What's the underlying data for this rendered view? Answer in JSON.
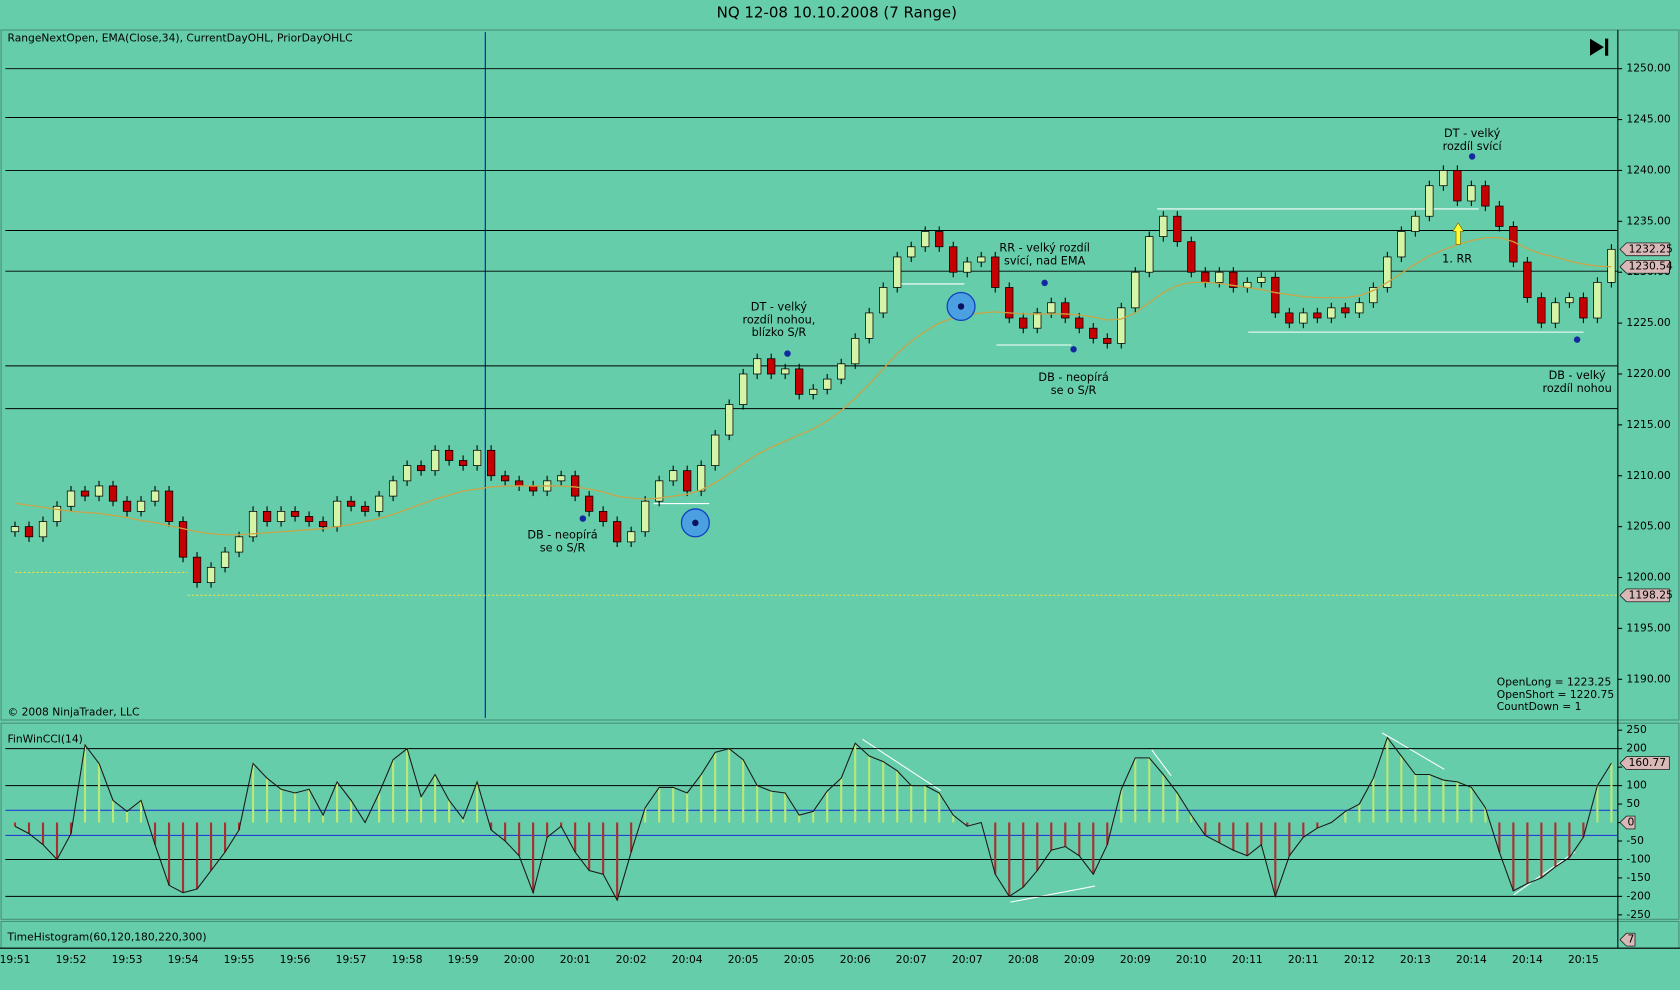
{
  "chart_data": {
    "type": "candlestick",
    "title": "NQ 12-08  10.10.2008 (7 Range)",
    "indicators_label": "RangeNextOpen, EMA(Close,34), CurrentDayOHL, PriorDayOHLC",
    "copyright": "© 2008 NinjaTrader, LLC",
    "categories": [
      "19:51",
      null,
      null,
      null,
      "19:52",
      null,
      null,
      null,
      "19:53",
      null,
      null,
      null,
      "19:54",
      null,
      null,
      null,
      "19:55",
      null,
      null,
      null,
      "19:56",
      null,
      null,
      null,
      "19:57",
      null,
      null,
      null,
      "19:58",
      null,
      null,
      null,
      "19:59",
      null,
      null,
      null,
      "20:00",
      null,
      null,
      null,
      "20:01",
      null,
      null,
      null,
      "20:02",
      null,
      null,
      null,
      "20:04",
      null,
      null,
      null,
      "20:05",
      null,
      null,
      null,
      "20:05",
      null,
      null,
      null,
      "20:06",
      null,
      null,
      null,
      "20:07",
      null,
      null,
      null,
      "20:07",
      null,
      null,
      null,
      "20:08",
      null,
      null,
      null,
      "20:09",
      null,
      null,
      null,
      "20:09",
      null,
      null,
      null,
      "20:10",
      null,
      null,
      null,
      "20:11",
      null,
      null,
      null,
      "20:11",
      null,
      null,
      null,
      "20:12",
      null,
      null,
      null,
      "20:13",
      null,
      null,
      null,
      "20:14",
      null,
      null,
      null,
      "20:14",
      null,
      null,
      null,
      "20:15",
      null,
      null
    ],
    "open": [
      1204.5,
      1205,
      1204,
      1205.5,
      1207,
      1208.5,
      1208,
      1209,
      1207.5,
      1206.5,
      1207.5,
      1208.5,
      1205.5,
      1202,
      1199.5,
      1201,
      1202.5,
      1204,
      1206.5,
      1205.5,
      1206.5,
      1206,
      1205.5,
      1205,
      1207.5,
      1207,
      1206.5,
      1208,
      1209.5,
      1211,
      1210.5,
      1212.5,
      1211.5,
      1211,
      1212.5,
      1210,
      1209.5,
      1209,
      1208.5,
      1209.5,
      1210,
      1208,
      1206.5,
      1205.5,
      1203.5,
      1204.5,
      1207.5,
      1209.5,
      1210.5,
      1208.5,
      1211,
      1214,
      1217,
      1220,
      1221.5,
      1220,
      1220.5,
      1218,
      1218.5,
      1219.5,
      1221,
      1223.5,
      1226,
      1228.5,
      1231.5,
      1232.5,
      1234,
      1232.5,
      1230,
      1231,
      1231.5,
      1228.5,
      1225.5,
      1224.5,
      1226,
      1227,
      1225.5,
      1224.5,
      1223.5,
      1223,
      1226.5,
      1230,
      1233.5,
      1235.5,
      1233,
      1230,
      1229,
      1230,
      1228.5,
      1229,
      1229.5,
      1226,
      1225,
      1226,
      1225.5,
      1226.5,
      1226,
      1227,
      1228.5,
      1231.5,
      1234,
      1235.5,
      1238.5,
      1240,
      1237,
      1238.5,
      1236.5,
      1234.5,
      1231,
      1227.5,
      1225,
      1227,
      1227.5,
      1225.5,
      1229
    ],
    "high": [
      1205.5,
      1205.5,
      1206,
      1207.5,
      1209,
      1209,
      1209.5,
      1209.5,
      1208,
      1208,
      1209,
      1209,
      1206,
      1202.5,
      1201.5,
      1203,
      1204.5,
      1207,
      1207,
      1207,
      1207,
      1206.5,
      1206,
      1208,
      1208,
      1207.5,
      1208.5,
      1210,
      1211.5,
      1211.5,
      1213,
      1213,
      1212,
      1213,
      1213,
      1210.5,
      1210,
      1209.5,
      1210,
      1210.5,
      1210.5,
      1208.5,
      1207,
      1206,
      1205,
      1208,
      1210,
      1211,
      1211,
      1211.5,
      1214.5,
      1217.5,
      1220.5,
      1222,
      1222,
      1221,
      1221,
      1219,
      1220,
      1221.5,
      1224,
      1226.5,
      1229,
      1232,
      1233,
      1234.5,
      1234.5,
      1233,
      1231.5,
      1232,
      1232,
      1229,
      1226,
      1226.5,
      1227.5,
      1227.5,
      1226,
      1225,
      1224,
      1227,
      1230.5,
      1234,
      1236,
      1236,
      1233.5,
      1230.5,
      1230.5,
      1230.5,
      1229.5,
      1230,
      1230,
      1226.5,
      1226.5,
      1226.5,
      1227,
      1227,
      1227.5,
      1229,
      1232,
      1234.5,
      1236,
      1239,
      1240.5,
      1240.5,
      1239,
      1239,
      1237,
      1235,
      1231.5,
      1228,
      1227.5,
      1228,
      1228,
      1229.5,
      1232.75
    ],
    "low": [
      1204,
      1203.5,
      1203.5,
      1205,
      1206.5,
      1207.5,
      1207.5,
      1207,
      1206,
      1206,
      1207,
      1205,
      1201.5,
      1199,
      1199,
      1200.5,
      1202,
      1203.5,
      1205,
      1205,
      1205.5,
      1205,
      1204.5,
      1204.5,
      1206.5,
      1206,
      1206,
      1207.5,
      1209,
      1210,
      1210,
      1211,
      1210.5,
      1210.5,
      1209.5,
      1209,
      1208.5,
      1208,
      1208,
      1209,
      1207.5,
      1206,
      1205,
      1203,
      1203,
      1204,
      1207,
      1209,
      1208,
      1208,
      1210.5,
      1213.5,
      1216.5,
      1219.5,
      1219.5,
      1219.5,
      1217.5,
      1217.5,
      1218,
      1219,
      1220.5,
      1223,
      1225.5,
      1228,
      1231,
      1232,
      1232,
      1229.5,
      1229.5,
      1230.5,
      1228,
      1225,
      1224,
      1224,
      1225.5,
      1225,
      1224,
      1223,
      1222.5,
      1222.5,
      1226,
      1229.5,
      1233,
      1232.5,
      1229.5,
      1228.5,
      1228.5,
      1228,
      1228,
      1228.5,
      1225.5,
      1224.5,
      1224.5,
      1225,
      1225,
      1225.5,
      1225.5,
      1226.5,
      1228,
      1231,
      1233.5,
      1235,
      1238,
      1236.5,
      1236.5,
      1236,
      1234,
      1230.5,
      1227,
      1224.5,
      1224.5,
      1226.5,
      1225,
      1225,
      1228.5
    ],
    "close": [
      1205,
      1204,
      1205.5,
      1207,
      1208.5,
      1208,
      1209,
      1207.5,
      1206.5,
      1207.5,
      1208.5,
      1205.5,
      1202,
      1199.5,
      1201,
      1202.5,
      1204,
      1206.5,
      1205.5,
      1206.5,
      1206,
      1205.5,
      1205,
      1207.5,
      1207,
      1206.5,
      1208,
      1209.5,
      1211,
      1210.5,
      1212.5,
      1211.5,
      1211,
      1212.5,
      1210,
      1209.5,
      1209,
      1208.5,
      1209.5,
      1210,
      1208,
      1206.5,
      1205.5,
      1203.5,
      1204.5,
      1207.5,
      1209.5,
      1210.5,
      1208.5,
      1211,
      1214,
      1217,
      1220,
      1221.5,
      1220,
      1220.5,
      1218,
      1218.5,
      1219.5,
      1221,
      1223.5,
      1226,
      1228.5,
      1231.5,
      1232.5,
      1234,
      1232.5,
      1230,
      1231,
      1231.5,
      1228.5,
      1225.5,
      1224.5,
      1226,
      1227,
      1225.5,
      1224.5,
      1223.5,
      1223,
      1226.5,
      1230,
      1233.5,
      1235.5,
      1233,
      1230,
      1229,
      1230,
      1228.5,
      1229,
      1229.5,
      1226,
      1225,
      1226,
      1225.5,
      1226.5,
      1226,
      1227,
      1228.5,
      1231.5,
      1234,
      1235.5,
      1238.5,
      1240,
      1237,
      1238.5,
      1236.5,
      1234.5,
      1231,
      1227.5,
      1225,
      1227,
      1227.5,
      1225.5,
      1229,
      1232.25
    ],
    "ema": [
      1207.3,
      1207.1,
      1206.9,
      1206.7,
      1206.5,
      1206.4,
      1206.3,
      1206.1,
      1205.9,
      1205.6,
      1205.4,
      1205.1,
      1204.8,
      1204.5,
      1204.3,
      1204.2,
      1204.2,
      1204.3,
      1204.4,
      1204.5,
      1204.6,
      1204.7,
      1204.8,
      1205,
      1205.2,
      1205.5,
      1205.8,
      1206.2,
      1206.7,
      1207.2,
      1207.7,
      1208.1,
      1208.5,
      1208.7,
      1208.9,
      1209,
      1209,
      1209,
      1209,
      1209,
      1208.9,
      1208.7,
      1208.4,
      1208,
      1207.8,
      1207.7,
      1207.8,
      1208,
      1208.2,
      1208.6,
      1209.3,
      1210.2,
      1211.2,
      1212.1,
      1212.8,
      1213.4,
      1214,
      1214.6,
      1215.4,
      1216.4,
      1217.6,
      1219,
      1220.5,
      1222,
      1223.2,
      1224.2,
      1225,
      1225.5,
      1225.8,
      1226,
      1226.1,
      1226,
      1225.9,
      1225.9,
      1225.9,
      1225.9,
      1225.8,
      1225.6,
      1225.3,
      1225.4,
      1226,
      1227,
      1228,
      1228.7,
      1229,
      1229,
      1228.9,
      1228.7,
      1228.5,
      1228.3,
      1228,
      1227.8,
      1227.6,
      1227.5,
      1227.5,
      1227.5,
      1227.7,
      1228.2,
      1229,
      1229.9,
      1230.8,
      1231.6,
      1232.2,
      1232.7,
      1233.1,
      1233.4,
      1233.4,
      1233,
      1232.3,
      1231.8,
      1231.5,
      1231.1,
      1230.8,
      1230.6,
      1230.54
    ],
    "ylim": [
      1186,
      1253.8
    ],
    "yticks": [
      {
        "value": 1190,
        "label": "1190.00"
      },
      {
        "value": 1195,
        "label": "1195.00"
      },
      {
        "value": 1200,
        "label": "1200.00"
      },
      {
        "value": 1205,
        "label": "1205.00"
      },
      {
        "value": 1210,
        "label": "1210.00"
      },
      {
        "value": 1215,
        "label": "1215.00"
      },
      {
        "value": 1220,
        "label": "1220.00"
      },
      {
        "value": 1225,
        "label": "1225.00"
      },
      {
        "value": 1230,
        "label": "1230.00"
      },
      {
        "value": 1235,
        "label": "1235.00"
      },
      {
        "value": 1240,
        "label": "1240.00"
      },
      {
        "value": 1245,
        "label": "1245.00"
      },
      {
        "value": 1250,
        "label": "1250.00"
      }
    ],
    "sr_levels": [
      1250,
      1245.2,
      1240,
      1234.1,
      1230.1,
      1220.8,
      1216.6
    ],
    "earlier_low": 1200.5,
    "prior_day_low": 1198.25,
    "prior_day_low_label": "1198.25",
    "last_price_label": "1232.25",
    "ema_label": "1230.54",
    "annotations": [
      {
        "lines": [
          "DB - neopírá",
          "se o S/R"
        ]
      },
      {
        "lines": [
          "DT - velký",
          "rozdíl nohou,",
          "blízko S/R"
        ]
      },
      {
        "lines": [
          "RR - velký rozdíl",
          "svící, nad EMA"
        ]
      },
      {
        "lines": [
          "DB - neopírá",
          "se o S/R"
        ]
      },
      {
        "lines": [
          "DT - velký",
          "rozdíl svící"
        ]
      },
      {
        "lines": [
          "1. RR"
        ]
      },
      {
        "lines": [
          "DB - velký",
          "rozdíl nohou"
        ]
      }
    ],
    "info": [
      "OpenLong = 1223.25",
      "OpenShort = 1220.75",
      "CountDown = 1"
    ],
    "cci": {
      "title": "FinWinCCI(14)",
      "values": [
        -10,
        -30,
        -60,
        -100,
        -30,
        210,
        160,
        60,
        30,
        60,
        -60,
        -170,
        -190,
        -180,
        -130,
        -80,
        -20,
        160,
        120,
        90,
        80,
        90,
        20,
        110,
        60,
        0,
        80,
        170,
        200,
        70,
        130,
        60,
        10,
        110,
        -20,
        -50,
        -90,
        -190,
        -40,
        -10,
        -80,
        -130,
        -140,
        -210,
        -80,
        40,
        95,
        95,
        80,
        130,
        190,
        200,
        170,
        100,
        85,
        80,
        20,
        30,
        85,
        120,
        215,
        180,
        165,
        140,
        100,
        100,
        80,
        20,
        -10,
        0,
        -140,
        -200,
        -175,
        -130,
        -75,
        -65,
        -90,
        -140,
        -60,
        90,
        175,
        175,
        130,
        80,
        20,
        -35,
        -55,
        -75,
        -90,
        -60,
        -200,
        -90,
        -40,
        -15,
        0,
        30,
        50,
        120,
        230,
        180,
        130,
        130,
        115,
        110,
        95,
        40,
        -80,
        -185,
        -165,
        -150,
        -120,
        -95,
        -40,
        100,
        160.77
      ],
      "last_label": "160.77",
      "ylim": [
        -262,
        266
      ],
      "yticks": [
        250,
        200,
        150,
        100,
        50,
        0,
        -50,
        -100,
        -150,
        -200,
        -250
      ],
      "levels": [
        200,
        100,
        -100,
        -200
      ],
      "bands": [
        33,
        -35
      ]
    },
    "time_histogram": {
      "title": "TimeHistogram(60,120,180,220,300)",
      "last_label": "7"
    }
  }
}
